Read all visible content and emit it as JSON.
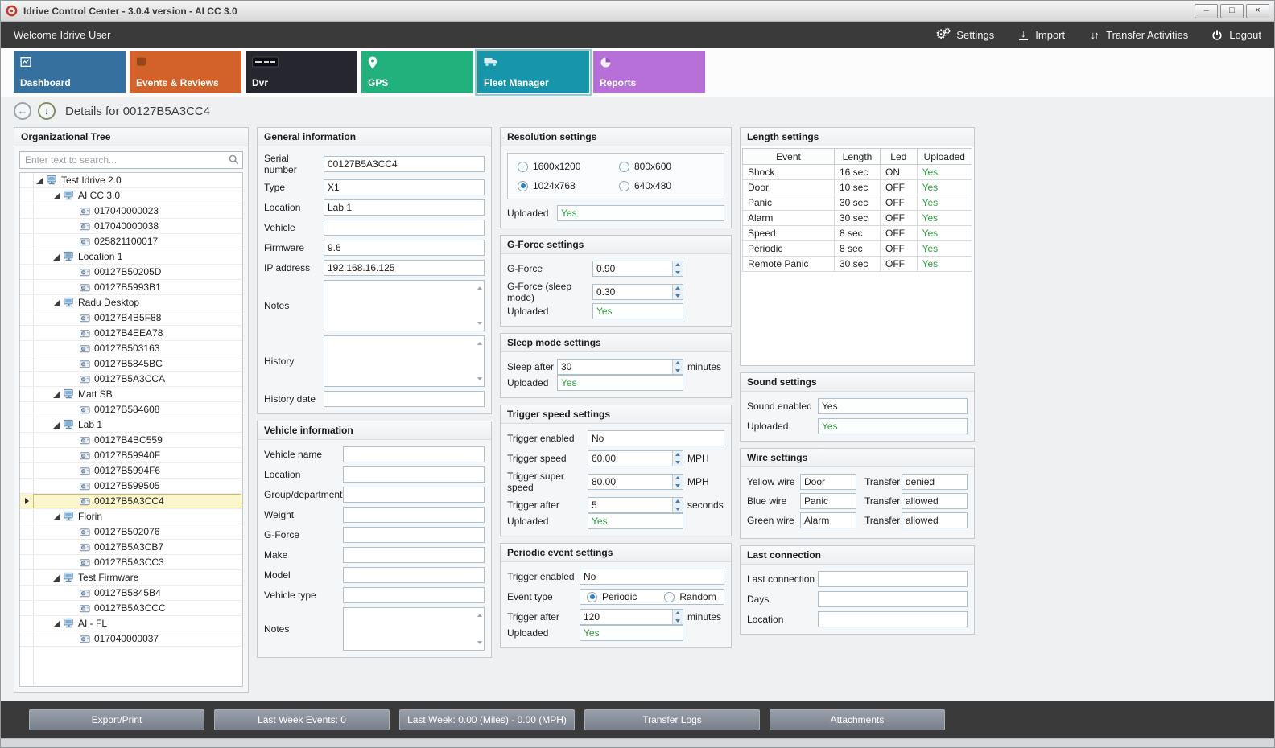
{
  "window": {
    "title": "Idrive Control Center - 3.0.4 version - AI CC 3.0",
    "controls": [
      {
        "id": "minimize",
        "glyph": "–"
      },
      {
        "id": "maximize",
        "glyph": "□"
      },
      {
        "id": "close",
        "glyph": "×"
      }
    ]
  },
  "toolbar": {
    "welcome": "Welcome Idrive User",
    "actions": [
      {
        "id": "settings",
        "label": "Settings",
        "icon": "gears-icon"
      },
      {
        "id": "import",
        "label": "Import",
        "icon": "import-icon"
      },
      {
        "id": "transfer-activities",
        "label": "Transfer Activities",
        "icon": "transfer-arrows-icon"
      },
      {
        "id": "logout",
        "label": "Logout",
        "icon": "power-icon"
      }
    ]
  },
  "nav_tabs": [
    {
      "id": "dashboard",
      "label": "Dashboard",
      "color": "#35709e",
      "icon": "chart-icon",
      "selected": false
    },
    {
      "id": "events-reviews",
      "label": "Events & Reviews",
      "color": "#d2622a",
      "icon": "events-icon",
      "selected": false
    },
    {
      "id": "dvr",
      "label": "Dvr",
      "color": "#26262e",
      "icon": "dvr-logo-icon",
      "selected": false
    },
    {
      "id": "gps",
      "label": "GPS",
      "color": "#21b17c",
      "icon": "map-pin-icon",
      "selected": false
    },
    {
      "id": "fleet-manager",
      "label": "Fleet Manager",
      "color": "#1795aa",
      "icon": "truck-icon",
      "selected": true
    },
    {
      "id": "reports",
      "label": "Reports",
      "color": "#b670d8",
      "icon": "pie-chart-icon",
      "selected": false
    }
  ],
  "details_header": {
    "title": "Details for 00127B5A3CC4"
  },
  "org_tree": {
    "title": "Organizational Tree",
    "search_placeholder": "Enter text to search...",
    "nodes": [
      {
        "label": "Test Idrive 2.0",
        "level": 0,
        "type": "group",
        "selected": false
      },
      {
        "label": "AI CC 3.0",
        "level": 1,
        "type": "group",
        "selected": false
      },
      {
        "label": "017040000023",
        "level": 2,
        "type": "device",
        "selected": false
      },
      {
        "label": "017040000038",
        "level": 2,
        "type": "device",
        "selected": false
      },
      {
        "label": "025821100017",
        "level": 2,
        "type": "device",
        "selected": false
      },
      {
        "label": "Location 1",
        "level": 1,
        "type": "group",
        "selected": false
      },
      {
        "label": "00127B50205D",
        "level": 2,
        "type": "device",
        "selected": false
      },
      {
        "label": "00127B5993B1",
        "level": 2,
        "type": "device",
        "selected": false
      },
      {
        "label": "Radu Desktop",
        "level": 1,
        "type": "group",
        "selected": false
      },
      {
        "label": "00127B4B5F88",
        "level": 2,
        "type": "device",
        "selected": false
      },
      {
        "label": "00127B4EEA78",
        "level": 2,
        "type": "device",
        "selected": false
      },
      {
        "label": "00127B503163",
        "level": 2,
        "type": "device",
        "selected": false
      },
      {
        "label": "00127B5845BC",
        "level": 2,
        "type": "device",
        "selected": false
      },
      {
        "label": "00127B5A3CCA",
        "level": 2,
        "type": "device",
        "selected": false
      },
      {
        "label": "Matt SB",
        "level": 1,
        "type": "group",
        "selected": false
      },
      {
        "label": "00127B584608",
        "level": 2,
        "type": "device",
        "selected": false
      },
      {
        "label": "Lab 1",
        "level": 1,
        "type": "group",
        "selected": false
      },
      {
        "label": "00127B4BC559",
        "level": 2,
        "type": "device",
        "selected": false
      },
      {
        "label": "00127B59940F",
        "level": 2,
        "type": "device",
        "selected": false
      },
      {
        "label": "00127B5994F6",
        "level": 2,
        "type": "device",
        "selected": false
      },
      {
        "label": "00127B599505",
        "level": 2,
        "type": "device",
        "selected": false
      },
      {
        "label": "00127B5A3CC4",
        "level": 2,
        "type": "device",
        "selected": true
      },
      {
        "label": "Florin",
        "level": 1,
        "type": "group",
        "selected": false
      },
      {
        "label": "00127B502076",
        "level": 2,
        "type": "device",
        "selected": false
      },
      {
        "label": "00127B5A3CB7",
        "level": 2,
        "type": "device",
        "selected": false
      },
      {
        "label": "00127B5A3CC3",
        "level": 2,
        "type": "device",
        "selected": false
      },
      {
        "label": "Test Firmware",
        "level": 1,
        "type": "group",
        "selected": false
      },
      {
        "label": "00127B5845B4",
        "level": 2,
        "type": "device",
        "selected": false
      },
      {
        "label": "00127B5A3CCC",
        "level": 2,
        "type": "device",
        "selected": false
      },
      {
        "label": "AI - FL",
        "level": 1,
        "type": "group",
        "selected": false
      },
      {
        "label": "017040000037",
        "level": 2,
        "type": "device",
        "selected": false
      }
    ]
  },
  "general_information": {
    "title": "General information",
    "fields": [
      {
        "label": "Serial number",
        "value": "00127B5A3CC4",
        "kind": "text"
      },
      {
        "label": "Type",
        "value": "X1",
        "kind": "text"
      },
      {
        "label": "Location",
        "value": "Lab 1",
        "kind": "text"
      },
      {
        "label": "Vehicle",
        "value": "",
        "kind": "text"
      },
      {
        "label": "Firmware",
        "value": "9.6",
        "kind": "text"
      },
      {
        "label": "IP address",
        "value": "192.168.16.125",
        "kind": "text"
      },
      {
        "label": "Notes",
        "value": "",
        "kind": "textarea"
      },
      {
        "label": "History",
        "value": "",
        "kind": "textarea"
      },
      {
        "label": "History date",
        "value": "",
        "kind": "text"
      }
    ]
  },
  "vehicle_information": {
    "title": "Vehicle information",
    "fields": [
      {
        "label": "Vehicle name",
        "value": "",
        "kind": "text"
      },
      {
        "label": "Location",
        "value": "",
        "kind": "text"
      },
      {
        "label": "Group/department",
        "value": "",
        "kind": "text"
      },
      {
        "label": "Weight",
        "value": "",
        "kind": "text"
      },
      {
        "label": "G-Force",
        "value": "",
        "kind": "text"
      },
      {
        "label": "Make",
        "value": "",
        "kind": "text"
      },
      {
        "label": "Model",
        "value": "",
        "kind": "text"
      },
      {
        "label": "Vehicle type",
        "value": "",
        "kind": "text"
      },
      {
        "label": "Notes",
        "value": "",
        "kind": "textarea"
      }
    ]
  },
  "resolution_settings": {
    "title": "Resolution settings",
    "options": [
      {
        "label": "1600x1200",
        "selected": false
      },
      {
        "label": "800x600",
        "selected": false
      },
      {
        "label": "1024x768",
        "selected": true
      },
      {
        "label": "640x480",
        "selected": false
      }
    ],
    "uploaded_label": "Uploaded",
    "uploaded_value": "Yes"
  },
  "gforce_settings": {
    "title": "G-Force settings",
    "rows": [
      {
        "label": "G-Force",
        "value": "0.90"
      },
      {
        "label": "G-Force (sleep mode)",
        "value": "0.30"
      }
    ],
    "uploaded_label": "Uploaded",
    "uploaded_value": "Yes"
  },
  "sleep_mode_settings": {
    "title": "Sleep mode settings",
    "sleep_after_label": "Sleep after",
    "sleep_after_value": "30",
    "sleep_after_unit": "minutes",
    "uploaded_label": "Uploaded",
    "uploaded_value": "Yes"
  },
  "trigger_speed_settings": {
    "title": "Trigger speed settings",
    "rows": [
      {
        "label": "Trigger enabled",
        "value": "No",
        "unit": "",
        "spin": false
      },
      {
        "label": "Trigger speed",
        "value": "60.00",
        "unit": "MPH",
        "spin": true
      },
      {
        "label": "Trigger super speed",
        "value": "80.00",
        "unit": "MPH",
        "spin": true
      },
      {
        "label": "Trigger after",
        "value": "5",
        "unit": "seconds",
        "spin": true
      }
    ],
    "uploaded_label": "Uploaded",
    "uploaded_value": "Yes"
  },
  "periodic_event_settings": {
    "title": "Periodic event settings",
    "trigger_enabled_label": "Trigger enabled",
    "trigger_enabled_value": "No",
    "event_type_label": "Event type",
    "event_type_options": [
      {
        "label": "Periodic",
        "selected": true
      },
      {
        "label": "Random",
        "selected": false
      }
    ],
    "trigger_after_label": "Trigger after",
    "trigger_after_value": "120",
    "trigger_after_unit": "minutes",
    "uploaded_label": "Uploaded",
    "uploaded_value": "Yes"
  },
  "length_settings": {
    "title": "Length settings",
    "columns": [
      "Event",
      "Length",
      "Led",
      "Uploaded"
    ],
    "rows": [
      [
        "Shock",
        "16 sec",
        "ON",
        "Yes"
      ],
      [
        "Door",
        "10 sec",
        "OFF",
        "Yes"
      ],
      [
        "Panic",
        "30 sec",
        "OFF",
        "Yes"
      ],
      [
        "Alarm",
        "30 sec",
        "OFF",
        "Yes"
      ],
      [
        "Speed",
        "8 sec",
        "OFF",
        "Yes"
      ],
      [
        "Periodic",
        "8 sec",
        "OFF",
        "Yes"
      ],
      [
        "Remote Panic",
        "30 sec",
        "OFF",
        "Yes"
      ]
    ]
  },
  "sound_settings": {
    "title": "Sound settings",
    "rows": [
      {
        "label": "Sound enabled",
        "value": "Yes",
        "green": false
      },
      {
        "label": "Uploaded",
        "value": "Yes",
        "green": true
      }
    ]
  },
  "wire_settings": {
    "title": "Wire settings",
    "transfer_label": "Transfer",
    "rows": [
      {
        "label": "Yellow wire",
        "value": "Door",
        "transfer": "denied"
      },
      {
        "label": "Blue wire",
        "value": "Panic",
        "transfer": "allowed"
      },
      {
        "label": "Green wire",
        "value": "Alarm",
        "transfer": "allowed"
      }
    ]
  },
  "last_connection": {
    "title": "Last connection",
    "rows": [
      {
        "label": "Last connection",
        "value": ""
      },
      {
        "label": "Days",
        "value": ""
      },
      {
        "label": "Location",
        "value": ""
      }
    ]
  },
  "bottom_bar": {
    "buttons": [
      {
        "id": "export-print",
        "label": "Export/Print"
      },
      {
        "id": "last-week-events",
        "label": "Last Week Events: 0"
      },
      {
        "id": "last-week-summary",
        "label": "Last Week: 0.00 (Miles) - 0.00 (MPH)"
      },
      {
        "id": "transfer-logs",
        "label": "Transfer Logs"
      },
      {
        "id": "attachments",
        "label": "Attachments"
      }
    ]
  },
  "colors": {
    "uploaded_green": "#2e9e3e",
    "toolbar_dark": "#3a3a3a",
    "selected_row_bg": "#fbf6cd",
    "selected_tab_outline": "#87cfdd"
  }
}
